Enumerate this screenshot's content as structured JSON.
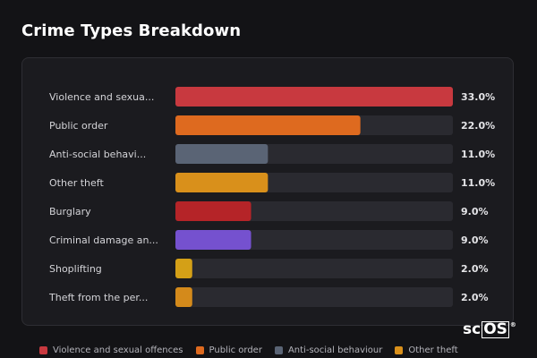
{
  "title": "Crime Types Breakdown",
  "chart_data": {
    "type": "bar",
    "orientation": "horizontal",
    "categories": [
      "Violence and sexua...",
      "Public order",
      "Anti-social behavi...",
      "Other theft",
      "Burglary",
      "Criminal damage an...",
      "Shoplifting",
      "Theft from the per..."
    ],
    "values": [
      33.0,
      22.0,
      11.0,
      11.0,
      9.0,
      9.0,
      2.0,
      2.0
    ],
    "value_labels": [
      "33.0%",
      "22.0%",
      "11.0%",
      "11.0%",
      "9.0%",
      "9.0%",
      "2.0%",
      "2.0%"
    ],
    "colors": [
      "#c8393f",
      "#de6a1f",
      "#5a6475",
      "#d9901b",
      "#b52428",
      "#7551cf",
      "#d4a017",
      "#d48a1b"
    ],
    "track_color": "#2a2a30",
    "xlim": [
      0,
      33
    ],
    "grid": false
  },
  "legend": [
    {
      "label": "Violence and sexual offences",
      "color": "#c8393f"
    },
    {
      "label": "Public order",
      "color": "#de6a1f"
    },
    {
      "label": "Anti-social behaviour",
      "color": "#5a6475"
    },
    {
      "label": "Other theft",
      "color": "#d9901b"
    }
  ],
  "logo": {
    "main": "sc",
    "boxed": "OS",
    "mark": "®"
  }
}
